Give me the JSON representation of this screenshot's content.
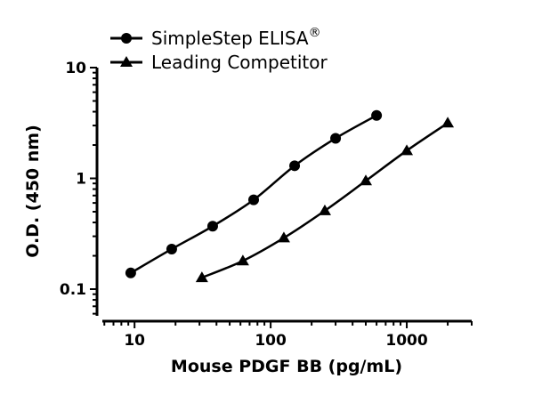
{
  "chart_data": {
    "type": "line",
    "xlabel": "Mouse PDGF BB (pg/mL)",
    "ylabel": "O.D. (450 nm)",
    "xscale": "log",
    "yscale": "log",
    "xlim": [
      5.8,
      3000
    ],
    "ylim": [
      0.057,
      10
    ],
    "xticks": [
      {
        "v": 10,
        "label": "10"
      },
      {
        "v": 100,
        "label": "100"
      },
      {
        "v": 1000,
        "label": "1000"
      }
    ],
    "yticks": [
      {
        "v": 0.1,
        "label": "0.1"
      },
      {
        "v": 1,
        "label": "1"
      },
      {
        "v": 10,
        "label": "10"
      }
    ],
    "grid": false,
    "legend_position": "top-left",
    "series": [
      {
        "name": "SimpleStep ELISA",
        "name_suffix": "®",
        "marker": "circle",
        "color": "#000000",
        "x": [
          9.375,
          18.75,
          37.5,
          75,
          150,
          300,
          600
        ],
        "y": [
          0.14,
          0.23,
          0.37,
          0.64,
          1.3,
          2.3,
          3.7
        ]
      },
      {
        "name": "Leading Competitor",
        "marker": "triangle",
        "color": "#000000",
        "x": [
          31.25,
          62.5,
          125,
          250,
          500,
          1000,
          2000
        ],
        "y": [
          0.127,
          0.18,
          0.29,
          0.51,
          0.95,
          1.78,
          3.16
        ]
      }
    ]
  }
}
